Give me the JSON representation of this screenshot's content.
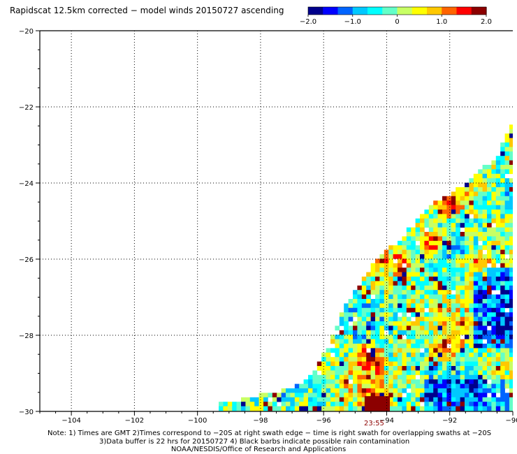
{
  "title": "Rapidscat 12.5km corrected − model winds 20150727 ascending",
  "colorbar": {
    "range": [
      -2.0,
      2.0
    ],
    "tick_labels": [
      "−2.0",
      "−1.0",
      "0",
      "1.0",
      "2.0"
    ],
    "tick_values": [
      -2.0,
      -1.0,
      0,
      1.0,
      2.0
    ],
    "colors": [
      "#00008c",
      "#0000ff",
      "#0064ff",
      "#00c8ff",
      "#00ffff",
      "#64ffc8",
      "#c8ff64",
      "#ffff00",
      "#ffc800",
      "#ff6400",
      "#ff0000",
      "#8c0000"
    ]
  },
  "chart_data": {
    "type": "heatmap",
    "title": "Rapidscat 12.5km corrected − model winds 20150727 ascending",
    "xlabel": "",
    "ylabel": "",
    "xlim": [
      -105,
      -90
    ],
    "ylim": [
      -30,
      -20
    ],
    "x_ticks": [
      -104,
      -102,
      -100,
      -98,
      -96,
      -94,
      -92,
      -90
    ],
    "x_tick_labels": [
      "−104",
      "−102",
      "−100",
      "−98",
      "−96",
      "−94",
      "−92",
      "−90"
    ],
    "y_ticks": [
      -20,
      -22,
      -24,
      -26,
      -28,
      -30
    ],
    "y_tick_labels": [
      "−20",
      "−22",
      "−24",
      "−26",
      "−28",
      "−30"
    ],
    "grid": true,
    "swath_time_label": "23:55",
    "swath_time_lon": -94.4,
    "swath_edge": [
      [
        -89.9,
        -22.2
      ],
      [
        -90.5,
        -23.3
      ],
      [
        -91.5,
        -24.0
      ],
      [
        -92.6,
        -24.6
      ],
      [
        -93.5,
        -25.4
      ],
      [
        -94.5,
        -26.2
      ],
      [
        -95.3,
        -27.2
      ],
      [
        -95.8,
        -28.2
      ],
      [
        -96.3,
        -29.0
      ],
      [
        -97.0,
        -29.4
      ],
      [
        -99.3,
        -29.8
      ],
      [
        -99.3,
        -30
      ],
      [
        -90,
        -30
      ]
    ],
    "swath_value_range": [
      -2.0,
      2.0
    ],
    "hot_spots": [
      [
        -91.1,
        -26.2
      ],
      [
        -92.1,
        -28.4
      ],
      [
        -94.5,
        -28.6
      ],
      [
        -94.4,
        -29.8
      ],
      [
        -93.6,
        -26.1
      ],
      [
        -92.5,
        -25.6
      ],
      [
        -92.0,
        -24.4
      ]
    ]
  },
  "notes": {
    "line1": "Note: 1) Times are GMT 2)Times correspond to −20S at right swath edge − time is right swath for overlapping swaths at −20S",
    "line2": "3)Data buffer is 22 hrs for 20150727 4) Black barbs indicate possible rain contamination",
    "line3": "NOAA/NESDIS/Office of Research and Applications"
  }
}
